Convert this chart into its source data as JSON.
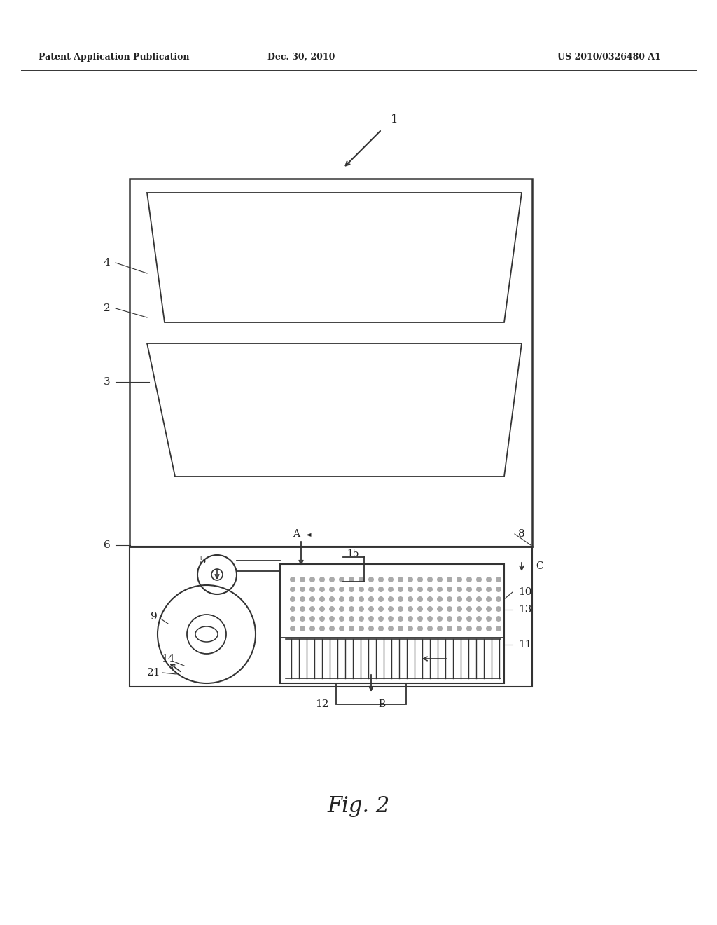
{
  "bg_color": "#ffffff",
  "header_left": "Patent Application Publication",
  "header_center": "Dec. 30, 2010",
  "header_right": "US 2010/0326480 A1",
  "figure_label": "Fig. 2",
  "line_color": "#333333",
  "label_color": "#222222"
}
